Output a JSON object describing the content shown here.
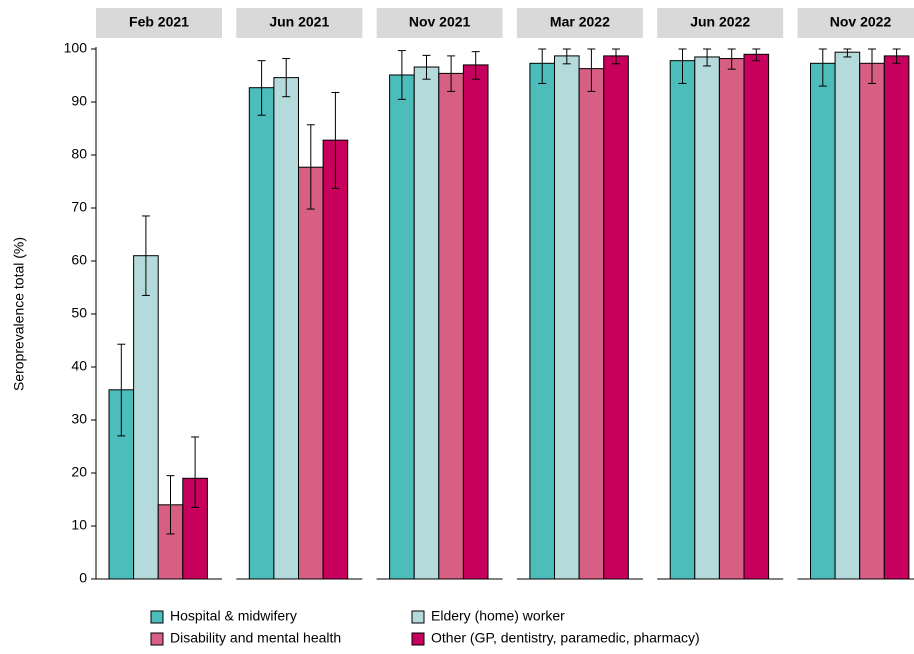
{
  "chart_data": {
    "type": "bar",
    "ylabel": "Seroprevalence total (%)",
    "facets": [
      "Feb 2021",
      "Jun 2021",
      "Nov 2021",
      "Mar 2022",
      "Jun 2022",
      "Nov 2022"
    ],
    "series": [
      {
        "name": "Hospital & midwifery",
        "color": "#4dbdbb",
        "values": [
          35.7,
          92.7,
          95.1,
          97.3,
          97.8,
          97.3
        ],
        "lower": [
          27,
          87.5,
          90.5,
          93.5,
          93.5,
          93
        ],
        "upper": [
          44.3,
          97.8,
          99.7,
          100,
          100,
          100
        ]
      },
      {
        "name": "Eldery (home) worker",
        "color": "#b4dadb",
        "values": [
          61,
          94.6,
          96.6,
          98.7,
          98.5,
          99.4
        ],
        "lower": [
          53.5,
          91,
          94.3,
          97.2,
          96.8,
          98.5
        ],
        "upper": [
          68.5,
          98.2,
          98.8,
          100,
          100,
          100
        ]
      },
      {
        "name": "Disability and mental health",
        "color": "#d75f84",
        "values": [
          14,
          77.7,
          95.4,
          96.3,
          98.2,
          97.3
        ],
        "lower": [
          8.5,
          69.8,
          92,
          92,
          96.2,
          93.5
        ],
        "upper": [
          19.5,
          85.7,
          98.7,
          100,
          100,
          100
        ]
      },
      {
        "name": "Other (GP, dentistry, paramedic, pharmacy)",
        "color": "#c6005c",
        "values": [
          19,
          82.8,
          97,
          98.7,
          99,
          98.7
        ],
        "lower": [
          13.5,
          73.7,
          94.3,
          97.2,
          97.8,
          97.3
        ],
        "upper": [
          26.8,
          91.8,
          99.5,
          100,
          100,
          100
        ]
      }
    ],
    "ylim": [
      0,
      100
    ],
    "yticks": [
      0,
      10,
      20,
      30,
      40,
      50,
      60,
      70,
      80,
      90,
      100
    ]
  }
}
